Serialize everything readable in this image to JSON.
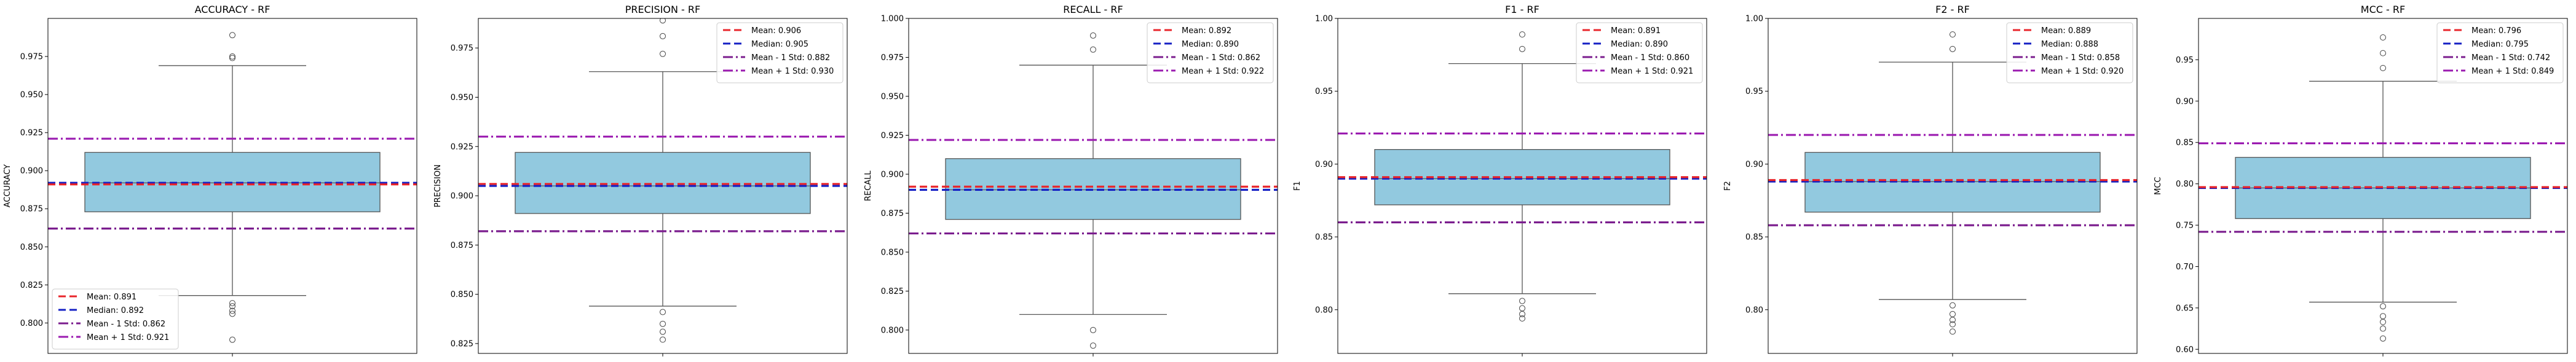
{
  "figure": {
    "background": "#ffffff",
    "box_fill": "#92c9df",
    "box_edge": "#555555",
    "colors": {
      "mean": "#e8252b",
      "median": "#1520c4",
      "mean_minus_std": "#7b1d8e",
      "mean_plus_std": "#9b1bb0"
    }
  },
  "chart_data": [
    {
      "type": "box",
      "title": "ACCURACY - RF",
      "xlabel": "",
      "ylabel": "ACCURACY",
      "ylim": [
        0.78,
        1.0
      ],
      "yticks": [
        0.8,
        0.825,
        0.85,
        0.875,
        0.9,
        0.925,
        0.95,
        0.975
      ],
      "ytick_labels": [
        "0.800",
        "0.825",
        "0.850",
        "0.875",
        "0.900",
        "0.925",
        "0.950",
        "0.975"
      ],
      "grid": false,
      "legend_position": "lower-left",
      "box": {
        "q1": 0.873,
        "median": 0.892,
        "q3": 0.912,
        "whisker_low": 0.818,
        "whisker_high": 0.969
      },
      "outliers": [
        0.989,
        0.975,
        0.974,
        0.813,
        0.811,
        0.808,
        0.806,
        0.789
      ],
      "lines": [
        {
          "key": "mean",
          "label": "Mean: 0.891",
          "value": 0.891
        },
        {
          "key": "median",
          "label": "Median: 0.892",
          "value": 0.892
        },
        {
          "key": "mean_minus_std",
          "label": "Mean - 1 Std: 0.862",
          "value": 0.862
        },
        {
          "key": "mean_plus_std",
          "label": "Mean + 1 Std: 0.921",
          "value": 0.921
        }
      ]
    },
    {
      "type": "box",
      "title": "PRECISION - RF",
      "xlabel": "",
      "ylabel": "PRECISION",
      "ylim": [
        0.82,
        0.99
      ],
      "yticks": [
        0.825,
        0.85,
        0.875,
        0.9,
        0.925,
        0.95,
        0.975
      ],
      "ytick_labels": [
        "0.825",
        "0.850",
        "0.875",
        "0.900",
        "0.925",
        "0.950",
        "0.975"
      ],
      "grid": false,
      "legend_position": "top-right",
      "box": {
        "q1": 0.891,
        "median": 0.905,
        "q3": 0.922,
        "whisker_low": 0.844,
        "whisker_high": 0.963
      },
      "outliers": [
        0.989,
        0.981,
        0.972,
        0.841,
        0.835,
        0.831,
        0.827
      ],
      "lines": [
        {
          "key": "mean",
          "label": "Mean: 0.906",
          "value": 0.906
        },
        {
          "key": "median",
          "label": "Median: 0.905",
          "value": 0.905
        },
        {
          "key": "mean_minus_std",
          "label": "Mean - 1 Std: 0.882",
          "value": 0.882
        },
        {
          "key": "mean_plus_std",
          "label": "Mean + 1 Std: 0.930",
          "value": 0.93
        }
      ]
    },
    {
      "type": "box",
      "title": "RECALL - RF",
      "xlabel": "",
      "ylabel": "RECALL",
      "ylim": [
        0.785,
        1.0
      ],
      "yticks": [
        0.8,
        0.825,
        0.85,
        0.875,
        0.9,
        0.925,
        0.95,
        0.975,
        1.0
      ],
      "ytick_labels": [
        "0.800",
        "0.825",
        "0.850",
        "0.875",
        "0.900",
        "0.925",
        "0.950",
        "0.975",
        "1.000"
      ],
      "grid": false,
      "legend_position": "top-right",
      "box": {
        "q1": 0.871,
        "median": 0.89,
        "q3": 0.91,
        "whisker_low": 0.81,
        "whisker_high": 0.97
      },
      "outliers": [
        0.989,
        0.98,
        0.8,
        0.79
      ],
      "lines": [
        {
          "key": "mean",
          "label": "Mean: 0.892",
          "value": 0.892
        },
        {
          "key": "median",
          "label": "Median: 0.890",
          "value": 0.89
        },
        {
          "key": "mean_minus_std",
          "label": "Mean - 1 Std: 0.862",
          "value": 0.862
        },
        {
          "key": "mean_plus_std",
          "label": "Mean + 1 Std: 0.922",
          "value": 0.922
        }
      ]
    },
    {
      "type": "box",
      "title": "F1 - RF",
      "xlabel": "",
      "ylabel": "F1",
      "ylim": [
        0.77,
        1.0
      ],
      "yticks": [
        0.8,
        0.85,
        0.9,
        0.95,
        1.0
      ],
      "ytick_labels": [
        "0.80",
        "0.85",
        "0.90",
        "0.95",
        "1.00"
      ],
      "grid": false,
      "legend_position": "top-right",
      "box": {
        "q1": 0.872,
        "median": 0.89,
        "q3": 0.91,
        "whisker_low": 0.811,
        "whisker_high": 0.969
      },
      "outliers": [
        0.989,
        0.979,
        0.806,
        0.801,
        0.797,
        0.794
      ],
      "lines": [
        {
          "key": "mean",
          "label": "Mean: 0.891",
          "value": 0.891
        },
        {
          "key": "median",
          "label": "Median: 0.890",
          "value": 0.89
        },
        {
          "key": "mean_minus_std",
          "label": "Mean - 1 Std: 0.860",
          "value": 0.86
        },
        {
          "key": "mean_plus_std",
          "label": "Mean + 1 Std: 0.921",
          "value": 0.921
        }
      ]
    },
    {
      "type": "box",
      "title": "F2 - RF",
      "xlabel": "",
      "ylabel": "F2",
      "ylim": [
        0.77,
        1.0
      ],
      "yticks": [
        0.8,
        0.85,
        0.9,
        0.95,
        1.0
      ],
      "ytick_labels": [
        "0.80",
        "0.85",
        "0.90",
        "0.95",
        "1.00"
      ],
      "grid": false,
      "legend_position": "top-right",
      "box": {
        "q1": 0.867,
        "median": 0.888,
        "q3": 0.908,
        "whisker_low": 0.807,
        "whisker_high": 0.97
      },
      "outliers": [
        0.989,
        0.979,
        0.803,
        0.797,
        0.793,
        0.79,
        0.785
      ],
      "lines": [
        {
          "key": "mean",
          "label": "Mean: 0.889",
          "value": 0.889
        },
        {
          "key": "median",
          "label": "Median: 0.888",
          "value": 0.888
        },
        {
          "key": "mean_minus_std",
          "label": "Mean - 1 Std: 0.858",
          "value": 0.858
        },
        {
          "key": "mean_plus_std",
          "label": "Mean + 1 Std: 0.920",
          "value": 0.92
        }
      ]
    },
    {
      "type": "box",
      "title": "MCC - RF",
      "xlabel": "",
      "ylabel": "MCC",
      "ylim": [
        0.595,
        1.0
      ],
      "yticks": [
        0.6,
        0.65,
        0.7,
        0.75,
        0.8,
        0.85,
        0.9,
        0.95
      ],
      "ytick_labels": [
        "0.60",
        "0.65",
        "0.70",
        "0.75",
        "0.80",
        "0.85",
        "0.90",
        "0.95"
      ],
      "grid": false,
      "legend_position": "top-right",
      "box": {
        "q1": 0.758,
        "median": 0.795,
        "q3": 0.832,
        "whisker_low": 0.657,
        "whisker_high": 0.924
      },
      "outliers": [
        0.977,
        0.958,
        0.94,
        0.652,
        0.64,
        0.633,
        0.625,
        0.613
      ],
      "lines": [
        {
          "key": "mean",
          "label": "Mean: 0.796",
          "value": 0.796
        },
        {
          "key": "median",
          "label": "Median: 0.795",
          "value": 0.795
        },
        {
          "key": "mean_minus_std",
          "label": "Mean - 1 Std: 0.742",
          "value": 0.742
        },
        {
          "key": "mean_plus_std",
          "label": "Mean + 1 Std: 0.849",
          "value": 0.849
        }
      ]
    }
  ]
}
